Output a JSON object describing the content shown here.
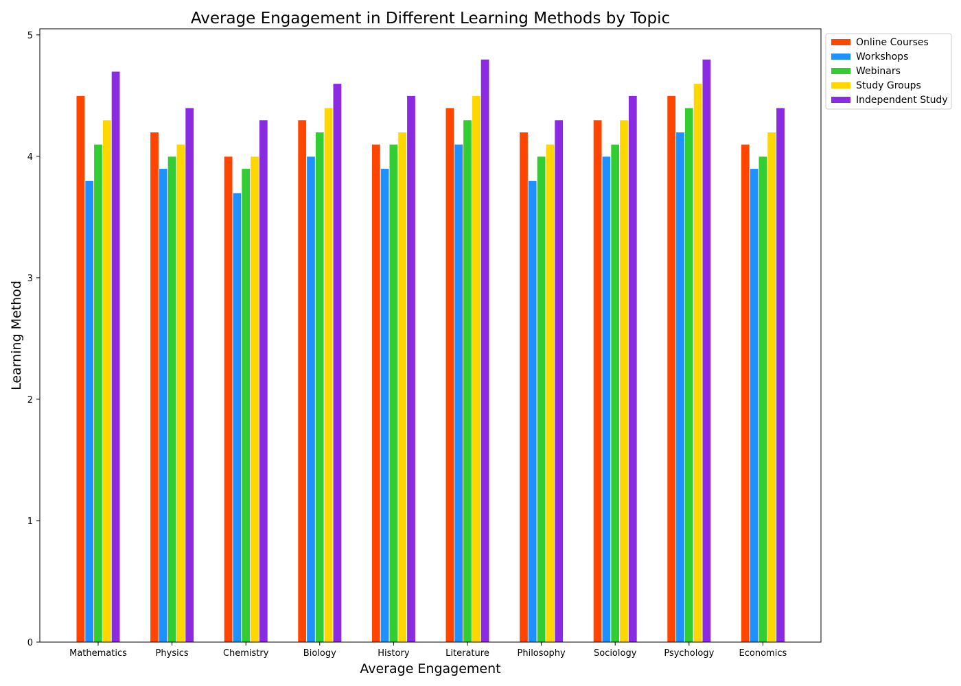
{
  "chart_data": {
    "type": "bar",
    "title": "Average Engagement in Different Learning Methods by Topic",
    "xlabel": "Average Engagement",
    "ylabel": "Learning Method",
    "categories": [
      "Mathematics",
      "Physics",
      "Chemistry",
      "Biology",
      "History",
      "Literature",
      "Philosophy",
      "Sociology",
      "Psychology",
      "Economics"
    ],
    "series": [
      {
        "name": "Online Courses",
        "color": "#ff4500",
        "values": [
          4.5,
          4.2,
          4.0,
          4.3,
          4.1,
          4.4,
          4.2,
          4.3,
          4.5,
          4.1
        ]
      },
      {
        "name": "Workshops",
        "color": "#1e90ff",
        "values": [
          3.8,
          3.9,
          3.7,
          4.0,
          3.9,
          4.1,
          3.8,
          4.0,
          4.2,
          3.9
        ]
      },
      {
        "name": "Webinars",
        "color": "#32cd32",
        "values": [
          4.1,
          4.0,
          3.9,
          4.2,
          4.1,
          4.3,
          4.0,
          4.1,
          4.4,
          4.0
        ]
      },
      {
        "name": "Study Groups",
        "color": "#ffd700",
        "values": [
          4.3,
          4.1,
          4.0,
          4.4,
          4.2,
          4.5,
          4.1,
          4.3,
          4.6,
          4.2
        ]
      },
      {
        "name": "Independent Study",
        "color": "#8a2be2",
        "values": [
          4.7,
          4.4,
          4.3,
          4.6,
          4.5,
          4.8,
          4.3,
          4.5,
          4.8,
          4.4
        ]
      }
    ],
    "ylim": [
      0,
      5.05
    ],
    "yticks": [
      0,
      1,
      2,
      3,
      4,
      5
    ],
    "grid": false,
    "legend_position": "top-right-outside"
  }
}
